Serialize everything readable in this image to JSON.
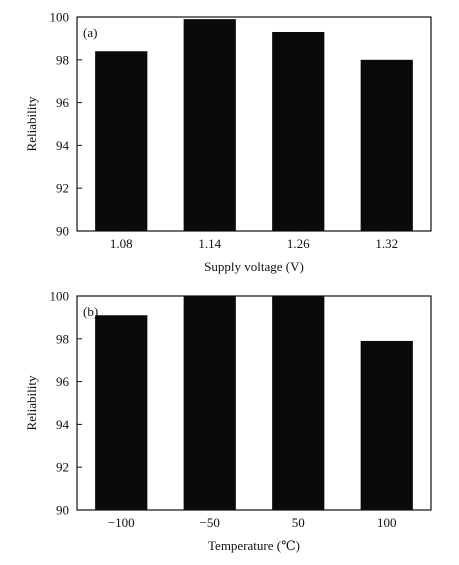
{
  "chart_data": [
    {
      "type": "bar",
      "panel_label": "(a)",
      "categories": [
        "1.08",
        "1.14",
        "1.26",
        "1.32"
      ],
      "values": [
        98.4,
        99.9,
        99.3,
        98.0
      ],
      "xlabel": "Supply voltage (V)",
      "ylabel": "Reliability",
      "ylim": [
        90,
        100
      ],
      "yticks": [
        90,
        92,
        94,
        96,
        98,
        100
      ],
      "grid": false,
      "bar_color": "#0a0a0a"
    },
    {
      "type": "bar",
      "panel_label": "(b)",
      "categories": [
        "−100",
        "−50",
        "50",
        "100"
      ],
      "values": [
        99.1,
        100,
        100,
        97.9
      ],
      "xlabel": "Temperature (℃)",
      "ylabel": "Reliability",
      "ylim": [
        90,
        100
      ],
      "yticks": [
        90,
        92,
        94,
        96,
        98,
        100
      ],
      "grid": false,
      "bar_color": "#0a0a0a"
    }
  ]
}
